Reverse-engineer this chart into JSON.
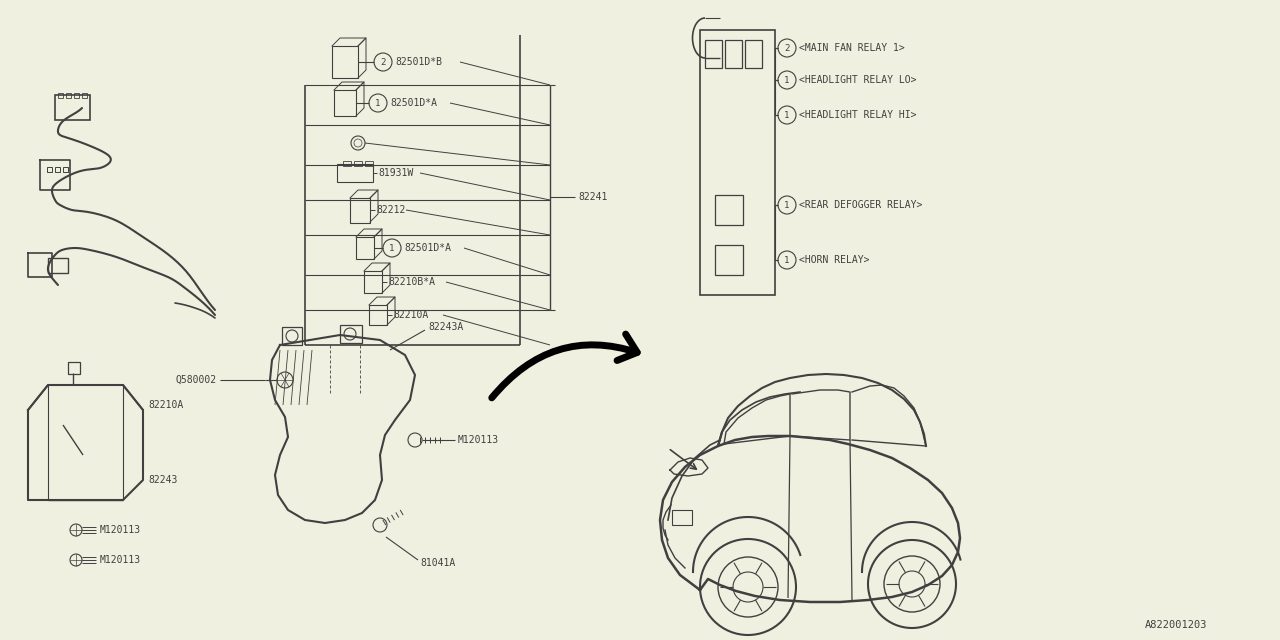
{
  "bg_color": "#f0f0e0",
  "line_color": "#404040",
  "fs": 7.0,
  "ff": "monospace",
  "fig_w": 12.8,
  "fig_h": 6.4,
  "xlim": [
    0,
    1280
  ],
  "ylim": [
    0,
    640
  ]
}
